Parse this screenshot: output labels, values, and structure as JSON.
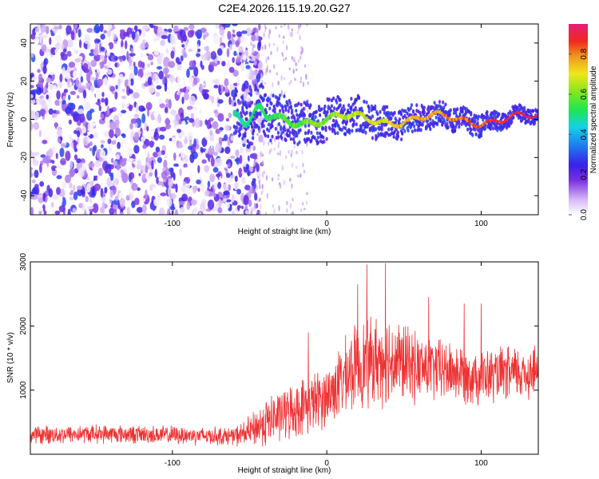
{
  "figure_title": "C2E4.2026.115.19.20.G27",
  "chart_data": [
    {
      "type": "heatmap",
      "xlabel": "Height of straight line (km)",
      "ylabel": "Frequency (Hz)",
      "xlim": [
        -192,
        137
      ],
      "ylim": [
        -50,
        50
      ],
      "xticks": [
        -100,
        0,
        100
      ],
      "yticks": [
        -40,
        -20,
        0,
        20,
        40
      ],
      "colorbar": {
        "label": "Normalized spectral amplitude",
        "range": [
          0.0,
          0.95
        ],
        "ticks": [
          0.0,
          0.2,
          0.4,
          0.6,
          0.8
        ],
        "tick_labels": [
          "0.0",
          "0.2",
          "0.4",
          "0.6",
          "0.8"
        ]
      },
      "features": {
        "noise_region_x": [
          -192,
          -50
        ],
        "signal_start_x": -60,
        "signal_center_hz": 0,
        "signal_peak_amplitude": 0.9
      }
    },
    {
      "type": "line",
      "xlabel": "Height of straight line (km)",
      "ylabel": "SNR (10 * v/v)",
      "xlim": [
        -192,
        137
      ],
      "ylim": [
        0,
        3000
      ],
      "xticks": [
        -100,
        0,
        100
      ],
      "yticks": [
        1000,
        2000,
        3000
      ],
      "series": [
        {
          "name": "SNR",
          "color": "#ee3333",
          "x": [
            -192,
            -150,
            -100,
            -60,
            -50,
            -40,
            -20,
            0,
            20,
            40,
            60,
            80,
            100,
            120,
            137
          ],
          "values": [
            300,
            320,
            300,
            280,
            350,
            500,
            700,
            900,
            1400,
            1500,
            1350,
            1300,
            1200,
            1250,
            1300
          ],
          "spread": [
            150,
            150,
            150,
            150,
            250,
            400,
            450,
            500,
            700,
            750,
            550,
            500,
            450,
            450,
            450
          ],
          "peaks": [
            [
              26,
              2960
            ],
            [
              38,
              2980
            ],
            [
              20,
              2650
            ],
            [
              66,
              2450
            ],
            [
              100,
              2350
            ],
            [
              89,
              2350
            ],
            [
              -12,
              1900
            ]
          ]
        }
      ]
    }
  ]
}
